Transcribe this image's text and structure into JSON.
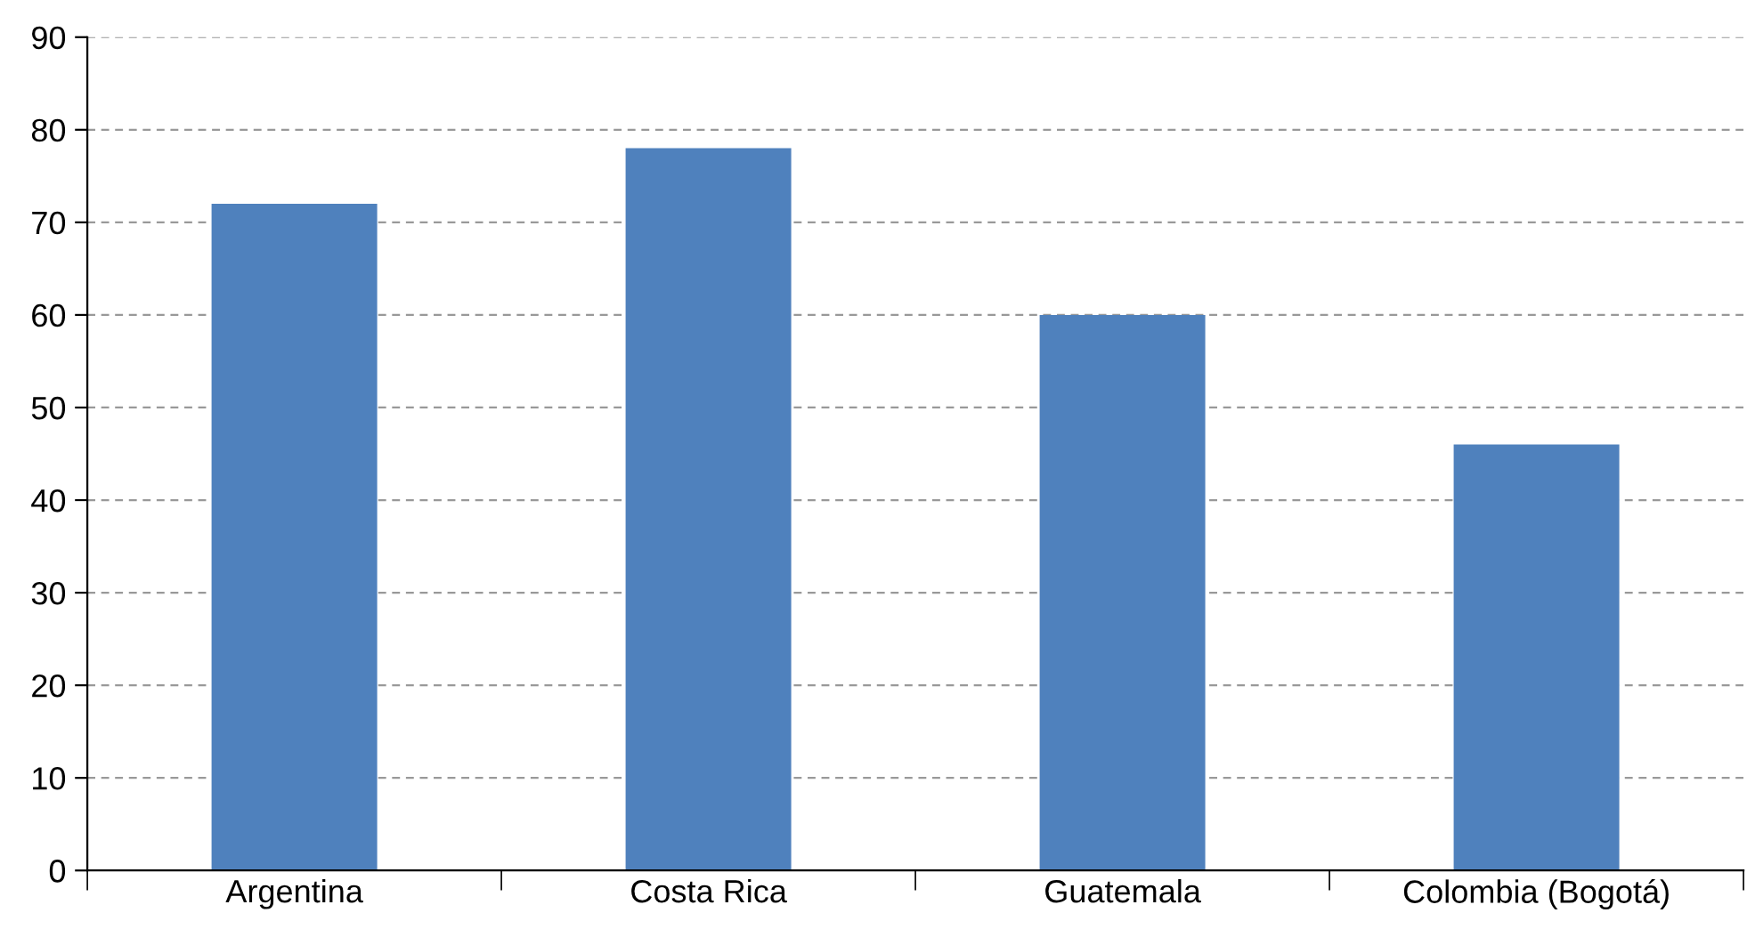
{
  "chart_data": {
    "type": "bar",
    "categories": [
      "Argentina",
      "Costa Rica",
      "Guatemala",
      "Colombia (Bogotá)"
    ],
    "values": [
      72,
      78,
      60,
      46
    ],
    "color": "#4f81bd",
    "ylim": [
      0,
      90
    ],
    "yticks": [
      0,
      10,
      20,
      30,
      40,
      50,
      60,
      70,
      80,
      90
    ],
    "grid": "y",
    "legend": false
  }
}
